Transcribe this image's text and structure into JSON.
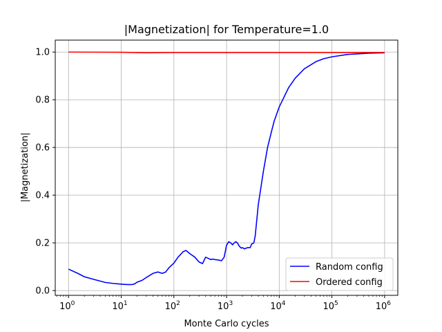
{
  "chart_data": {
    "type": "line",
    "title": "|Magnetization| for Temperature=1.0",
    "xlabel": "Monte Carlo cycles",
    "ylabel": "|Magnetization|",
    "xscale": "log",
    "xlim": [
      0.56,
      1780000
    ],
    "ylim": [
      -0.02,
      1.05
    ],
    "grid": true,
    "legend_position": "lower-right",
    "x_ticks": [
      {
        "value": 1,
        "base": "10",
        "exp": "0"
      },
      {
        "value": 10,
        "base": "10",
        "exp": "1"
      },
      {
        "value": 100,
        "base": "10",
        "exp": "2"
      },
      {
        "value": 1000,
        "base": "10",
        "exp": "3"
      },
      {
        "value": 10000,
        "base": "10",
        "exp": "4"
      },
      {
        "value": 100000,
        "base": "10",
        "exp": "5"
      },
      {
        "value": 1000000,
        "base": "10",
        "exp": "6"
      }
    ],
    "y_ticks": [
      "0.0",
      "0.2",
      "0.4",
      "0.6",
      "0.8",
      "1.0"
    ],
    "series": [
      {
        "name": "Random config",
        "color": "#0000ff",
        "x": [
          1,
          1.5,
          2,
          3,
          5,
          7,
          10,
          13,
          16,
          18,
          20,
          25,
          30,
          40,
          50,
          60,
          70,
          80,
          100,
          120,
          150,
          170,
          200,
          250,
          300,
          350,
          400,
          450,
          500,
          550,
          600,
          700,
          800,
          900,
          1000,
          1100,
          1200,
          1300,
          1400,
          1500,
          1600,
          1700,
          1800,
          1900,
          2000,
          2200,
          2500,
          2800,
          3000,
          3300,
          3500,
          4000,
          5000,
          6000,
          7000,
          8000,
          10000,
          15000,
          20000,
          30000,
          50000,
          70000,
          100000,
          200000,
          500000,
          1000000
        ],
        "y": [
          0.09,
          0.072,
          0.058,
          0.047,
          0.034,
          0.03,
          0.027,
          0.025,
          0.025,
          0.028,
          0.035,
          0.043,
          0.055,
          0.072,
          0.078,
          0.072,
          0.078,
          0.095,
          0.115,
          0.14,
          0.163,
          0.168,
          0.155,
          0.14,
          0.12,
          0.113,
          0.14,
          0.135,
          0.13,
          0.132,
          0.13,
          0.128,
          0.125,
          0.14,
          0.19,
          0.205,
          0.2,
          0.192,
          0.2,
          0.205,
          0.2,
          0.19,
          0.183,
          0.178,
          0.18,
          0.175,
          0.18,
          0.18,
          0.195,
          0.2,
          0.23,
          0.36,
          0.5,
          0.6,
          0.66,
          0.71,
          0.77,
          0.85,
          0.89,
          0.93,
          0.96,
          0.972,
          0.98,
          0.99,
          0.995,
          0.997
        ]
      },
      {
        "name": "Ordered config",
        "color": "#ff0000",
        "x": [
          1,
          10,
          30,
          100,
          1000,
          10000,
          100000,
          1000000
        ],
        "y": [
          1.0,
          0.999,
          0.997,
          0.998,
          0.998,
          0.998,
          0.998,
          0.998
        ]
      }
    ]
  }
}
